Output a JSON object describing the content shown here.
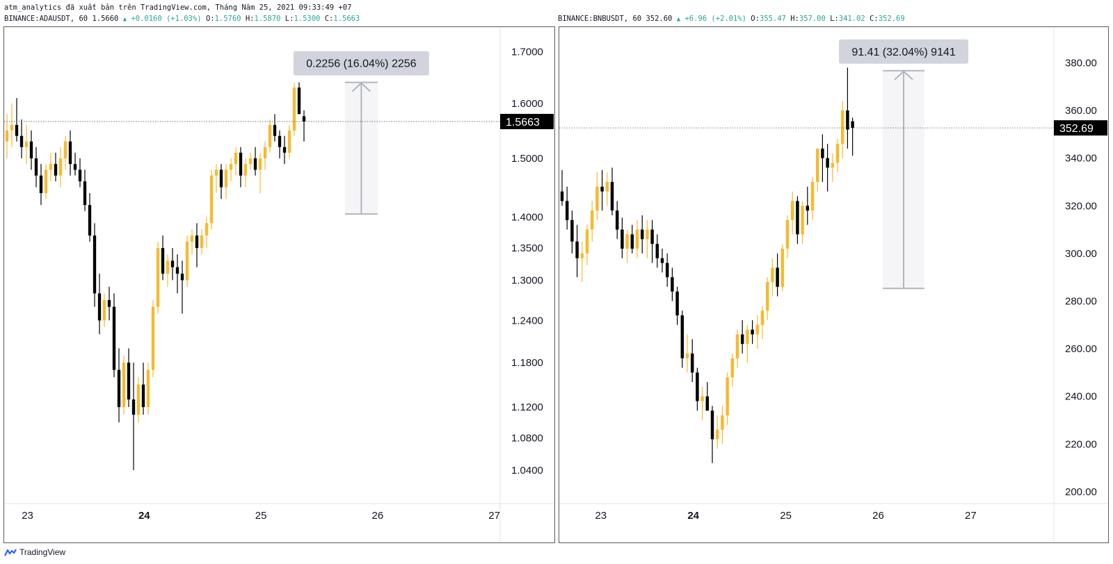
{
  "header": {
    "credit": "atm_analytics đã xuất bản trên TradingView.com, Tháng Năm 25, 2021 09:33:49 +07"
  },
  "footer": {
    "logo_text": "TradingView",
    "logo_icon": "tradingview-logo-icon"
  },
  "colors": {
    "up": "#f7b92f",
    "down": "#000000",
    "price_label_bg": "#000000",
    "measure_bg": "#d1d4dc",
    "change_text": "#26a69a"
  },
  "panels": [
    {
      "symbol_line": "BINANCE:ADAUSDT, 60",
      "last": "1.5660",
      "change": "+0.0160 (+1.03%)",
      "ohlc": [
        {
          "k": "O:",
          "v": "1.5760"
        },
        {
          "k": "H:",
          "v": "1.5870"
        },
        {
          "k": "L:",
          "v": "1.5300"
        },
        {
          "k": "C:",
          "v": "1.5663"
        }
      ],
      "price_label": "1.5663",
      "measure_label": "0.2256 (16.04%) 2256",
      "y_ticks": [
        "1.7000",
        "1.6000",
        "1.5000",
        "1.4000",
        "1.3500",
        "1.3000",
        "1.2400",
        "1.1800",
        "1.1200",
        "1.0800",
        "1.0400"
      ],
      "x_ticks": [
        "23",
        "24",
        "25",
        "26",
        "27"
      ]
    },
    {
      "symbol_line": "BINANCE:BNBUSDT, 60",
      "last": "352.60",
      "change": "+6.96 (+2.01%)",
      "ohlc": [
        {
          "k": "O:",
          "v": "355.47"
        },
        {
          "k": "H:",
          "v": "357.00"
        },
        {
          "k": "L:",
          "v": "341.02"
        },
        {
          "k": "C:",
          "v": "352.69"
        }
      ],
      "price_label": "352.69",
      "measure_label": "91.41 (32.04%) 9141",
      "y_ticks": [
        "380.00",
        "360.00",
        "340.00",
        "320.00",
        "300.00",
        "280.00",
        "260.00",
        "240.00",
        "220.00",
        "200.00"
      ],
      "x_ticks": [
        "23",
        "24",
        "25",
        "26",
        "27"
      ]
    }
  ],
  "chart_data": [
    {
      "type": "candlestick",
      "symbol": "BINANCE:ADAUSDT",
      "interval": "60",
      "y_scale": "log",
      "ylim": [
        1.0,
        1.75
      ],
      "x_range": [
        22.8,
        27.05
      ],
      "x_ticks": [
        23,
        24,
        25,
        26,
        27
      ],
      "last_price": 1.5663,
      "measure": {
        "from": 1.405,
        "to": 1.64,
        "x_from": 25.72,
        "x_to": 26.0,
        "label": "0.2256 (16.04%) 2256"
      },
      "candles": [
        [
          1.53,
          1.58,
          1.5,
          1.55
        ],
        [
          1.55,
          1.6,
          1.52,
          1.56
        ],
        [
          1.56,
          1.61,
          1.53,
          1.54
        ],
        [
          1.54,
          1.57,
          1.5,
          1.52
        ],
        [
          1.52,
          1.56,
          1.49,
          1.53
        ],
        [
          1.53,
          1.55,
          1.48,
          1.5
        ],
        [
          1.5,
          1.52,
          1.45,
          1.47
        ],
        [
          1.47,
          1.49,
          1.42,
          1.44
        ],
        [
          1.44,
          1.49,
          1.43,
          1.48
        ],
        [
          1.48,
          1.51,
          1.46,
          1.49
        ],
        [
          1.49,
          1.51,
          1.46,
          1.47
        ],
        [
          1.47,
          1.52,
          1.45,
          1.5
        ],
        [
          1.5,
          1.54,
          1.48,
          1.53
        ],
        [
          1.53,
          1.55,
          1.47,
          1.49
        ],
        [
          1.49,
          1.51,
          1.47,
          1.48
        ],
        [
          1.48,
          1.5,
          1.45,
          1.46
        ],
        [
          1.46,
          1.48,
          1.41,
          1.42
        ],
        [
          1.42,
          1.44,
          1.36,
          1.37
        ],
        [
          1.37,
          1.39,
          1.26,
          1.28
        ],
        [
          1.28,
          1.31,
          1.22,
          1.24
        ],
        [
          1.24,
          1.28,
          1.23,
          1.27
        ],
        [
          1.27,
          1.29,
          1.24,
          1.26
        ],
        [
          1.26,
          1.28,
          1.16,
          1.17
        ],
        [
          1.17,
          1.2,
          1.1,
          1.12
        ],
        [
          1.12,
          1.19,
          1.11,
          1.18
        ],
        [
          1.18,
          1.2,
          1.12,
          1.13
        ],
        [
          1.13,
          1.18,
          1.04,
          1.11
        ],
        [
          1.11,
          1.16,
          1.1,
          1.15
        ],
        [
          1.15,
          1.18,
          1.11,
          1.12
        ],
        [
          1.12,
          1.18,
          1.11,
          1.17
        ],
        [
          1.17,
          1.27,
          1.16,
          1.26
        ],
        [
          1.26,
          1.36,
          1.25,
          1.35
        ],
        [
          1.35,
          1.37,
          1.3,
          1.31
        ],
        [
          1.31,
          1.34,
          1.29,
          1.33
        ],
        [
          1.33,
          1.35,
          1.3,
          1.32
        ],
        [
          1.32,
          1.34,
          1.28,
          1.31
        ],
        [
          1.31,
          1.33,
          1.25,
          1.3
        ],
        [
          1.3,
          1.37,
          1.29,
          1.36
        ],
        [
          1.36,
          1.38,
          1.34,
          1.37
        ],
        [
          1.37,
          1.39,
          1.32,
          1.35
        ],
        [
          1.35,
          1.38,
          1.34,
          1.37
        ],
        [
          1.37,
          1.4,
          1.35,
          1.39
        ],
        [
          1.39,
          1.48,
          1.38,
          1.47
        ],
        [
          1.47,
          1.49,
          1.44,
          1.48
        ],
        [
          1.48,
          1.49,
          1.43,
          1.45
        ],
        [
          1.45,
          1.49,
          1.43,
          1.48
        ],
        [
          1.48,
          1.5,
          1.46,
          1.49
        ],
        [
          1.49,
          1.52,
          1.47,
          1.51
        ],
        [
          1.51,
          1.52,
          1.45,
          1.47
        ],
        [
          1.47,
          1.5,
          1.45,
          1.49
        ],
        [
          1.49,
          1.51,
          1.48,
          1.5
        ],
        [
          1.5,
          1.52,
          1.47,
          1.48
        ],
        [
          1.48,
          1.51,
          1.44,
          1.5
        ],
        [
          1.5,
          1.53,
          1.48,
          1.52
        ],
        [
          1.52,
          1.57,
          1.51,
          1.56
        ],
        [
          1.56,
          1.58,
          1.53,
          1.54
        ],
        [
          1.54,
          1.55,
          1.5,
          1.52
        ],
        [
          1.52,
          1.54,
          1.49,
          1.51
        ],
        [
          1.51,
          1.56,
          1.5,
          1.55
        ],
        [
          1.55,
          1.64,
          1.54,
          1.63
        ],
        [
          1.63,
          1.64,
          1.58,
          1.58
        ],
        [
          1.576,
          1.587,
          1.53,
          1.5663
        ]
      ]
    },
    {
      "type": "candlestick",
      "symbol": "BINANCE:BNBUSDT",
      "interval": "60",
      "y_scale": "linear",
      "ylim": [
        195,
        395
      ],
      "x_range": [
        22.55,
        27.9
      ],
      "x_ticks": [
        23,
        24,
        25,
        26,
        27
      ],
      "last_price": 352.69,
      "measure": {
        "from": 285.3,
        "to": 376.7,
        "x_from": 26.05,
        "x_to": 26.5,
        "label": "91.41 (32.04%) 9141"
      },
      "candles": [
        [
          326,
          335,
          320,
          322
        ],
        [
          322,
          328,
          310,
          314
        ],
        [
          314,
          318,
          300,
          305
        ],
        [
          305,
          312,
          290,
          298
        ],
        [
          298,
          305,
          288,
          300
        ],
        [
          300,
          312,
          295,
          310
        ],
        [
          310,
          322,
          305,
          318
        ],
        [
          318,
          334,
          314,
          328
        ],
        [
          328,
          335,
          318,
          326
        ],
        [
          326,
          334,
          320,
          330
        ],
        [
          330,
          336,
          316,
          318
        ],
        [
          318,
          322,
          306,
          310
        ],
        [
          310,
          315,
          298,
          302
        ],
        [
          302,
          310,
          296,
          308
        ],
        [
          308,
          312,
          300,
          302
        ],
        [
          302,
          314,
          298,
          310
        ],
        [
          310,
          316,
          300,
          306
        ],
        [
          306,
          314,
          298,
          310
        ],
        [
          310,
          314,
          296,
          304
        ],
        [
          304,
          308,
          294,
          298
        ],
        [
          298,
          302,
          292,
          296
        ],
        [
          296,
          300,
          286,
          290
        ],
        [
          290,
          294,
          280,
          284
        ],
        [
          284,
          286,
          270,
          274
        ],
        [
          274,
          276,
          252,
          256
        ],
        [
          256,
          266,
          250,
          258
        ],
        [
          258,
          264,
          246,
          250
        ],
        [
          250,
          252,
          234,
          238
        ],
        [
          238,
          244,
          230,
          240
        ],
        [
          240,
          246,
          236,
          234
        ],
        [
          234,
          236,
          212,
          222
        ],
        [
          222,
          232,
          218,
          226
        ],
        [
          226,
          236,
          220,
          232
        ],
        [
          232,
          250,
          228,
          248
        ],
        [
          248,
          258,
          244,
          256
        ],
        [
          256,
          268,
          252,
          266
        ],
        [
          266,
          272,
          258,
          262
        ],
        [
          262,
          270,
          254,
          268
        ],
        [
          268,
          272,
          262,
          266
        ],
        [
          266,
          274,
          260,
          270
        ],
        [
          270,
          278,
          264,
          276
        ],
        [
          276,
          290,
          272,
          288
        ],
        [
          288,
          298,
          282,
          294
        ],
        [
          294,
          300,
          282,
          286
        ],
        [
          286,
          304,
          284,
          302
        ],
        [
          302,
          316,
          298,
          314
        ],
        [
          314,
          326,
          308,
          322
        ],
        [
          322,
          324,
          304,
          308
        ],
        [
          308,
          322,
          304,
          320
        ],
        [
          320,
          328,
          312,
          318
        ],
        [
          318,
          332,
          314,
          330
        ],
        [
          330,
          344,
          326,
          344
        ],
        [
          344,
          350,
          330,
          340
        ],
        [
          340,
          346,
          326,
          336
        ],
        [
          336,
          342,
          330,
          338
        ],
        [
          338,
          348,
          334,
          346
        ],
        [
          346,
          364,
          340,
          360
        ],
        [
          360,
          378,
          344,
          352
        ],
        [
          355.47,
          357.0,
          341.02,
          352.69
        ]
      ]
    }
  ]
}
